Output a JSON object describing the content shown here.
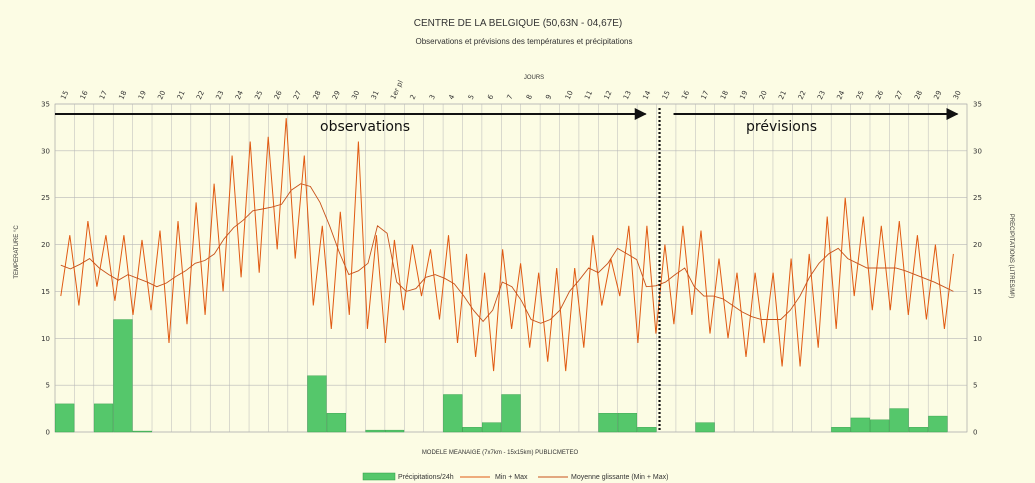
{
  "chart_data": {
    "type": "bar",
    "title": "CENTRE DE LA BELGIQUE (50,63N - 04,67E)",
    "subtitle": "Observations et prévisions des températures et précipitations",
    "top_axis_label": "JOURS",
    "ylabel_left": "TEMPERATURE °C",
    "ylabel_right": "PRECIPITATIONS (LITRES/M²)",
    "xlabel": "MODELE MEANAIGE (7x7km - 15x15km) PUBLICMETEO",
    "ylim": [
      0,
      35
    ],
    "yticks": [
      "0",
      "5",
      "10",
      "15",
      "20",
      "25",
      "30",
      "35"
    ],
    "day_labels": [
      "15",
      "16",
      "17",
      "18",
      "19",
      "20",
      "21",
      "22",
      "23",
      "24",
      "25",
      "26",
      "27",
      "28",
      "29",
      "30",
      "31",
      "1er pl",
      "2",
      "3",
      "4",
      "5",
      "6",
      "7",
      "8",
      "9",
      "10",
      "11",
      "12",
      "13",
      "14",
      "15",
      "16",
      "17",
      "18",
      "19",
      "20",
      "21",
      "22",
      "23",
      "24",
      "25",
      "26",
      "27",
      "28",
      "29",
      "30"
    ],
    "observations_label": "observations",
    "forecast_label": "prévisions",
    "legend": {
      "precip": "Précipitations/24h",
      "minmax": "Min + Max",
      "moving": "Moyenne glissante (Min + Max)"
    },
    "precipitation": [
      3,
      0,
      3,
      12,
      0.1,
      0,
      0,
      0,
      0,
      0,
      0,
      0,
      0,
      6,
      2,
      0,
      0.2,
      0.2,
      0,
      0,
      4,
      0.5,
      1,
      4,
      0,
      0,
      0,
      0,
      2,
      2,
      0.5,
      0,
      0,
      1,
      0,
      0,
      0,
      0,
      0,
      0,
      0.5,
      1.5,
      1.3,
      2.5,
      0.5,
      1.7,
      0
    ],
    "temps_min_max": [
      14.5,
      21,
      13.5,
      22.5,
      15.5,
      21,
      14,
      21,
      12.5,
      20.5,
      13,
      21.5,
      9.5,
      22.5,
      11.5,
      24.5,
      12.5,
      26.5,
      15,
      29.5,
      16.5,
      31,
      17,
      31.5,
      19.5,
      33.5,
      18.5,
      29.5,
      13.5,
      22,
      11,
      23.5,
      12.5,
      31,
      11,
      21,
      9.5,
      20.5,
      13,
      20,
      14.5,
      19.5,
      12,
      21,
      9.5,
      19,
      8,
      17,
      6.5,
      19.5,
      11,
      18,
      9,
      17,
      7.5,
      17.5,
      6.5,
      17.5,
      9,
      21,
      13.5,
      18.5,
      14.5,
      22,
      9.5,
      22,
      10.5,
      20,
      11.5,
      22,
      12.5,
      21.5,
      10.5,
      18.5,
      10,
      17,
      8,
      17,
      9.5,
      17,
      7,
      18.5,
      7,
      19,
      9,
      23,
      11,
      25,
      14.5,
      23,
      13,
      22,
      13,
      22.5,
      12.5,
      21,
      12,
      20,
      11,
      19
    ],
    "moving_average": [
      17.8,
      17.4,
      17.9,
      18.5,
      17.5,
      16.8,
      16.2,
      16.8,
      16.4,
      16.0,
      15.5,
      15.9,
      16.6,
      17.2,
      18.0,
      18.3,
      19.0,
      20.6,
      21.8,
      22.6,
      23.6,
      23.8,
      24.0,
      24.3,
      25.8,
      26.5,
      26.2,
      24.5,
      22.0,
      19.2,
      16.8,
      17.2,
      18.0,
      22.0,
      21.2,
      16.0,
      15.0,
      15.3,
      16.5,
      16.8,
      16.4,
      15.8,
      14.5,
      13.0,
      11.8,
      13.0,
      16.0,
      15.5,
      14.0,
      12.0,
      11.6,
      12.0,
      13.0,
      15.0,
      16.2,
      17.5,
      17.0,
      18.0,
      19.6,
      19.0,
      18.4,
      15.5,
      15.6,
      16.0,
      16.8,
      17.5,
      15.5,
      14.5,
      14.5,
      14.2,
      13.5,
      12.8,
      12.3,
      12.0,
      12.0,
      12.0,
      13.0,
      14.5,
      16.5,
      18.0,
      19.0,
      19.6,
      18.5,
      18.0,
      17.5,
      17.5,
      17.5,
      17.5,
      17.2,
      16.8,
      16.4,
      16.0,
      15.5,
      15.0
    ]
  },
  "colors": {
    "bar": "#55c76b",
    "bar_stroke": "#2f9c45",
    "minmax": "#e05a12",
    "moving": "#c8521a",
    "bg": "#fcfce4",
    "grid": "#b7b7b7"
  }
}
